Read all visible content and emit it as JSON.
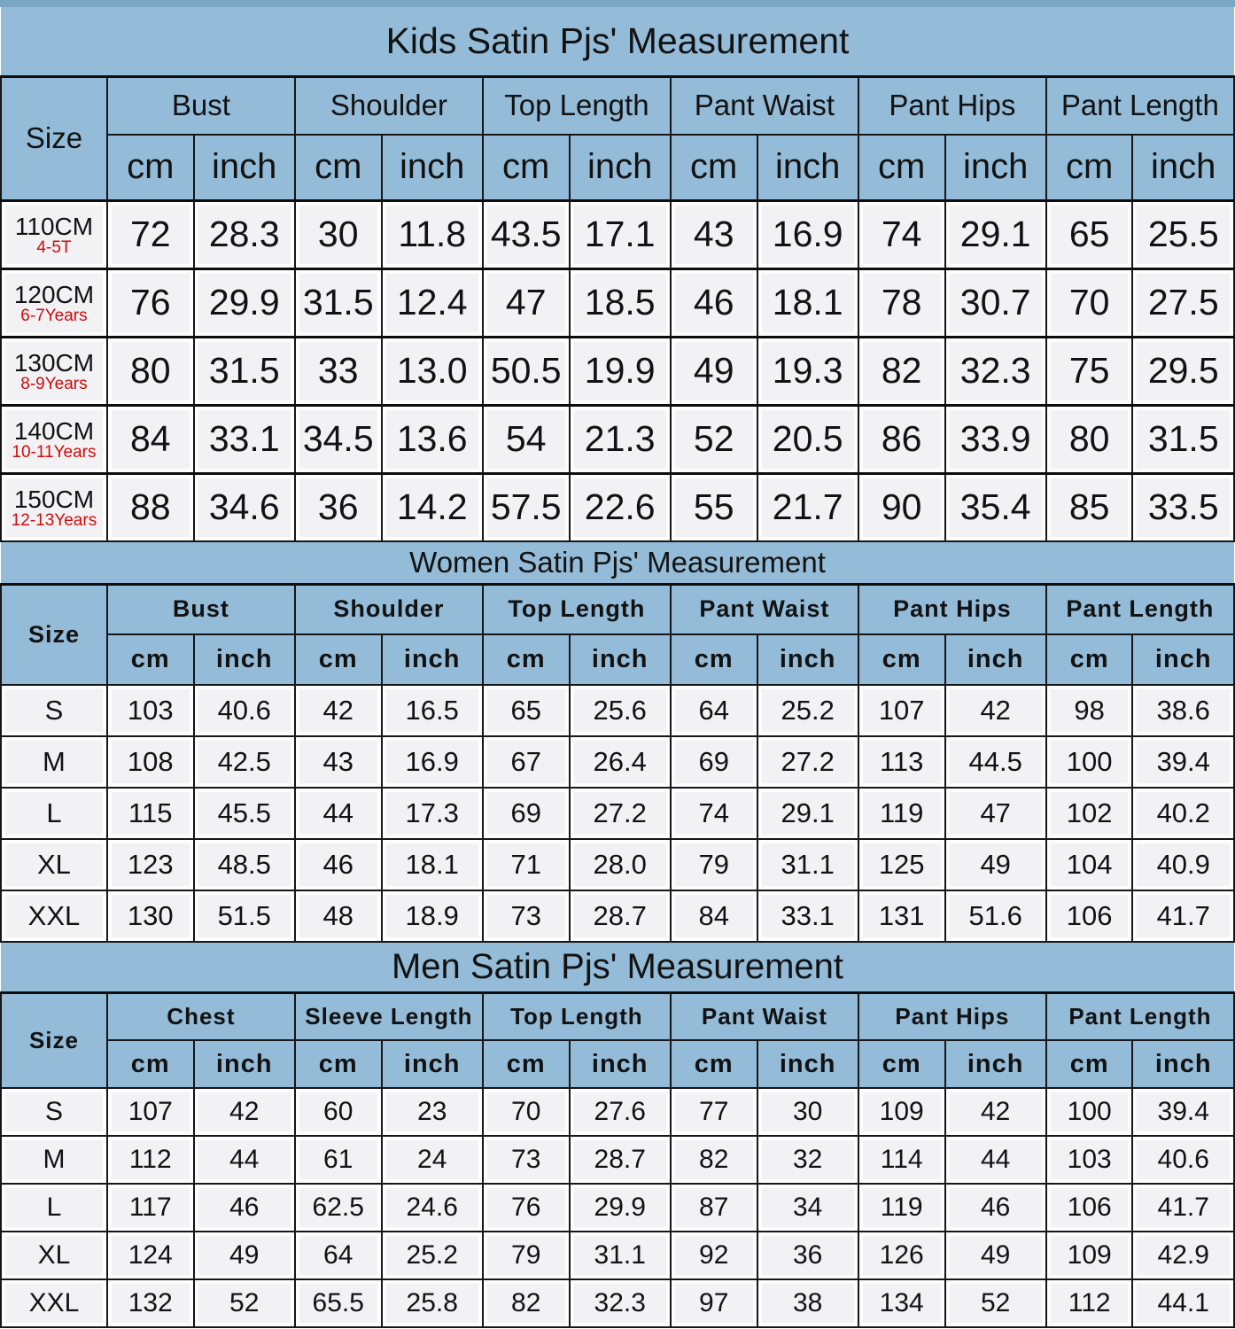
{
  "colors": {
    "header_blue": "#94bcd8",
    "top_strip_blue": "#7ba7c6",
    "cell_background": "#f2f2f5",
    "border_black": "#161616",
    "age_red": "#ce0b0b"
  },
  "tables": [
    {
      "id": "kids",
      "title": "Kids Satin Pjs' Measurement",
      "size_header": "Size",
      "unit_cm": "cm",
      "unit_inch": "inch",
      "groups": [
        "Bust",
        "Shoulder",
        "Top Length",
        "Pant Waist",
        "Pant Hips",
        "Pant Length"
      ],
      "rows": [
        {
          "size": "110CM",
          "age": "4-5T",
          "values": [
            "72",
            "28.3",
            "30",
            "11.8",
            "43.5",
            "17.1",
            "43",
            "16.9",
            "74",
            "29.1",
            "65",
            "25.5"
          ]
        },
        {
          "size": "120CM",
          "age": "6-7Years",
          "values": [
            "76",
            "29.9",
            "31.5",
            "12.4",
            "47",
            "18.5",
            "46",
            "18.1",
            "78",
            "30.7",
            "70",
            "27.5"
          ]
        },
        {
          "size": "130CM",
          "age": "8-9Years",
          "values": [
            "80",
            "31.5",
            "33",
            "13.0",
            "50.5",
            "19.9",
            "49",
            "19.3",
            "82",
            "32.3",
            "75",
            "29.5"
          ]
        },
        {
          "size": "140CM",
          "age": "10-11Years",
          "values": [
            "84",
            "33.1",
            "34.5",
            "13.6",
            "54",
            "21.3",
            "52",
            "20.5",
            "86",
            "33.9",
            "80",
            "31.5"
          ]
        },
        {
          "size": "150CM",
          "age": "12-13Years",
          "values": [
            "88",
            "34.6",
            "36",
            "14.2",
            "57.5",
            "22.6",
            "55",
            "21.7",
            "90",
            "35.4",
            "85",
            "33.5"
          ]
        }
      ]
    },
    {
      "id": "women",
      "title": "Women Satin Pjs' Measurement",
      "size_header": "Size",
      "unit_cm": "cm",
      "unit_inch": "inch",
      "groups": [
        "Bust",
        "Shoulder",
        "Top Length",
        "Pant Waist",
        "Pant Hips",
        "Pant Length"
      ],
      "rows": [
        {
          "size": "S",
          "values": [
            "103",
            "40.6",
            "42",
            "16.5",
            "65",
            "25.6",
            "64",
            "25.2",
            "107",
            "42",
            "98",
            "38.6"
          ]
        },
        {
          "size": "M",
          "values": [
            "108",
            "42.5",
            "43",
            "16.9",
            "67",
            "26.4",
            "69",
            "27.2",
            "113",
            "44.5",
            "100",
            "39.4"
          ]
        },
        {
          "size": "L",
          "values": [
            "115",
            "45.5",
            "44",
            "17.3",
            "69",
            "27.2",
            "74",
            "29.1",
            "119",
            "47",
            "102",
            "40.2"
          ]
        },
        {
          "size": "XL",
          "values": [
            "123",
            "48.5",
            "46",
            "18.1",
            "71",
            "28.0",
            "79",
            "31.1",
            "125",
            "49",
            "104",
            "40.9"
          ]
        },
        {
          "size": "XXL",
          "values": [
            "130",
            "51.5",
            "48",
            "18.9",
            "73",
            "28.7",
            "84",
            "33.1",
            "131",
            "51.6",
            "106",
            "41.7"
          ]
        }
      ]
    },
    {
      "id": "men",
      "title": "Men Satin Pjs' Measurement",
      "size_header": "Size",
      "unit_cm": "cm",
      "unit_inch": "inch",
      "groups": [
        "Chest",
        "Sleeve Length",
        "Top Length",
        "Pant Waist",
        "Pant Hips",
        "Pant Length"
      ],
      "rows": [
        {
          "size": "S",
          "values": [
            "107",
            "42",
            "60",
            "23",
            "70",
            "27.6",
            "77",
            "30",
            "109",
            "42",
            "100",
            "39.4"
          ]
        },
        {
          "size": "M",
          "values": [
            "112",
            "44",
            "61",
            "24",
            "73",
            "28.7",
            "82",
            "32",
            "114",
            "44",
            "103",
            "40.6"
          ]
        },
        {
          "size": "L",
          "values": [
            "117",
            "46",
            "62.5",
            "24.6",
            "76",
            "29.9",
            "87",
            "34",
            "119",
            "46",
            "106",
            "41.7"
          ]
        },
        {
          "size": "XL",
          "values": [
            "124",
            "49",
            "64",
            "25.2",
            "79",
            "31.1",
            "92",
            "36",
            "126",
            "49",
            "109",
            "42.9"
          ]
        },
        {
          "size": "XXL",
          "values": [
            "132",
            "52",
            "65.5",
            "25.8",
            "82",
            "32.3",
            "97",
            "38",
            "134",
            "52",
            "112",
            "44.1"
          ]
        }
      ]
    }
  ]
}
